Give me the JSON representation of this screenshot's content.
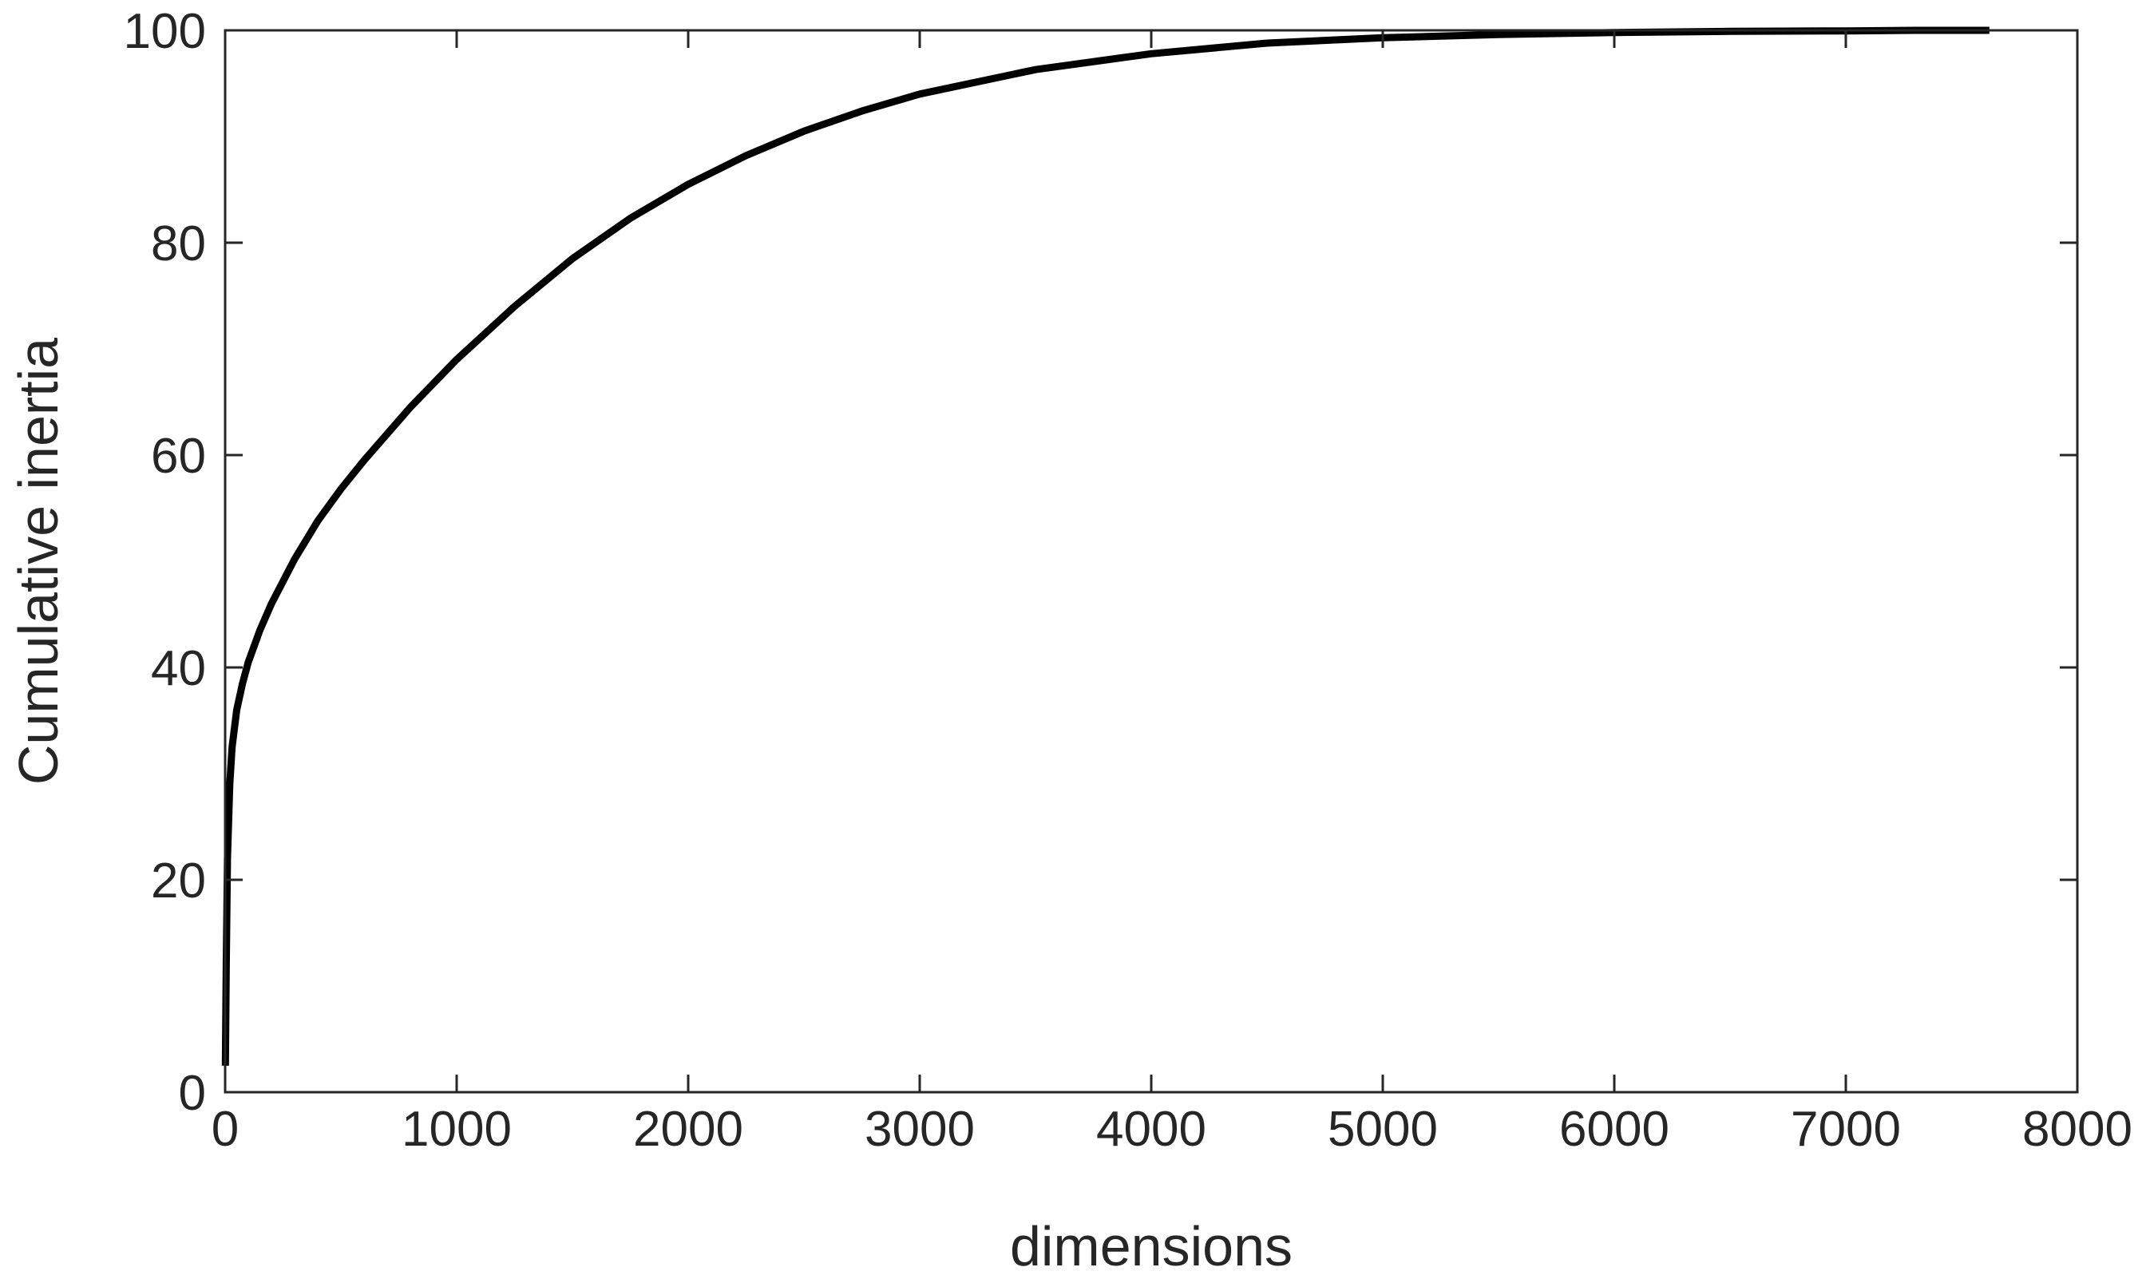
{
  "chart_data": {
    "type": "line",
    "title": "",
    "xlabel": "dimensions",
    "ylabel": "Cumulative inertia",
    "xlim": [
      0,
      8000
    ],
    "ylim": [
      0,
      100
    ],
    "xticks": [
      0,
      1000,
      2000,
      3000,
      4000,
      5000,
      6000,
      7000,
      8000
    ],
    "yticks": [
      0,
      20,
      40,
      60,
      80,
      100
    ],
    "grid": false,
    "legend": "none",
    "colors": {
      "line": "#000000",
      "axes": "#262626"
    },
    "series": [
      {
        "x": [
          1,
          5,
          10,
          20,
          30,
          50,
          75,
          100,
          150,
          200,
          300,
          400,
          500,
          600,
          800,
          1000,
          1250,
          1500,
          1750,
          2000,
          2250,
          2500,
          2750,
          3000,
          3500,
          4000,
          4500,
          5000,
          5500,
          6000,
          6500,
          7000,
          7300,
          7620
        ],
        "y": [
          2.5,
          12,
          22,
          29,
          32.5,
          36,
          38.5,
          40.5,
          43.5,
          46,
          50.2,
          53.8,
          56.8,
          59.5,
          64.5,
          69,
          74,
          78.5,
          82.3,
          85.5,
          88.2,
          90.5,
          92.4,
          94,
          96.3,
          97.8,
          98.8,
          99.3,
          99.6,
          99.8,
          99.9,
          99.95,
          100,
          100
        ]
      }
    ]
  }
}
